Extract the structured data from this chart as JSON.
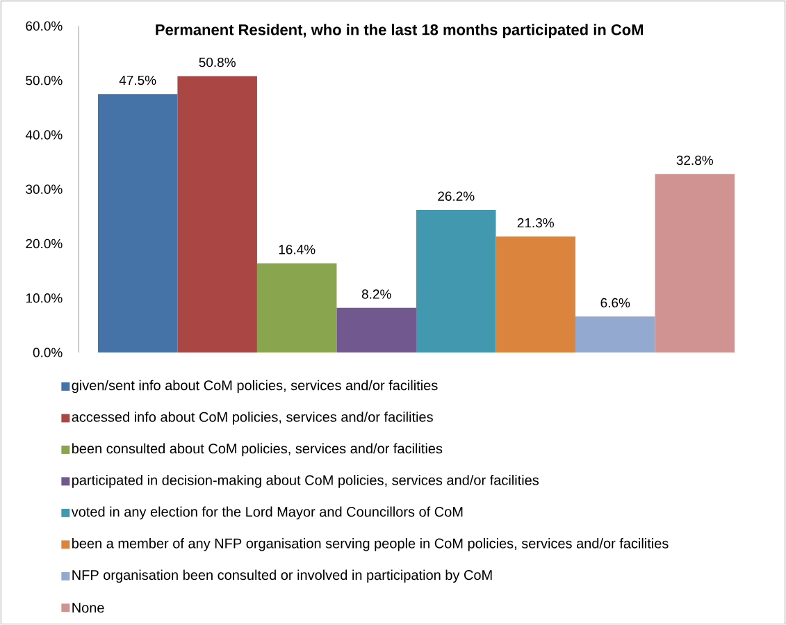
{
  "chart_data": {
    "type": "bar",
    "title": "**Permanent Resident, who in the last 18 months participated in CoM**",
    "categories": [
      null
    ],
    "series": [
      {
        "name": "given/sent info about CoM policies, services and/or facilities",
        "color": "#4572a7",
        "values": [
          47.5
        ],
        "value_labels": [
          "47.5%"
        ]
      },
      {
        "name": "accessed info about CoM policies, services and/or facilities",
        "color": "#aa4643",
        "values": [
          50.8
        ],
        "value_labels": [
          "50.8%"
        ]
      },
      {
        "name": "been consulted about CoM policies, services and/or facilities",
        "color": "#89a54e",
        "values": [
          16.4
        ],
        "value_labels": [
          "16.4%"
        ]
      },
      {
        "name": "participated in decision-making about CoM policies, services and/or facilities",
        "color": "#71588f",
        "values": [
          8.2
        ],
        "value_labels": [
          "8.2%"
        ]
      },
      {
        "name": "voted in any election for the Lord Mayor and Councillors of CoM",
        "color": "#4198af",
        "values": [
          26.2
        ],
        "value_labels": [
          "26.2%"
        ]
      },
      {
        "name": "been a member of any NFP organisation serving people in CoM policies, services and/or facilities",
        "color": "#db843d",
        "values": [
          21.3
        ],
        "value_labels": [
          "21.3%"
        ]
      },
      {
        "name": "NFP organisation been consulted or involved in participation by CoM",
        "color": "#93a9cf",
        "values": [
          6.6
        ],
        "value_labels": [
          "6.6%"
        ]
      },
      {
        "name": "None",
        "color": "#d19392",
        "values": [
          32.8
        ],
        "value_labels": [
          "32.8%"
        ]
      }
    ],
    "ylim": [
      0,
      60
    ],
    "yticks": [
      {
        "value": 0,
        "label": "0.0%"
      },
      {
        "value": 10,
        "label": "10.0%"
      },
      {
        "value": 20,
        "label": "20.0%"
      },
      {
        "value": 30,
        "label": "30.0%"
      },
      {
        "value": 40,
        "label": "40.0%"
      },
      {
        "value": 50,
        "label": "50.0%"
      },
      {
        "value": 60,
        "label": "60.0%"
      }
    ],
    "grid": false,
    "legend": "bottom"
  }
}
